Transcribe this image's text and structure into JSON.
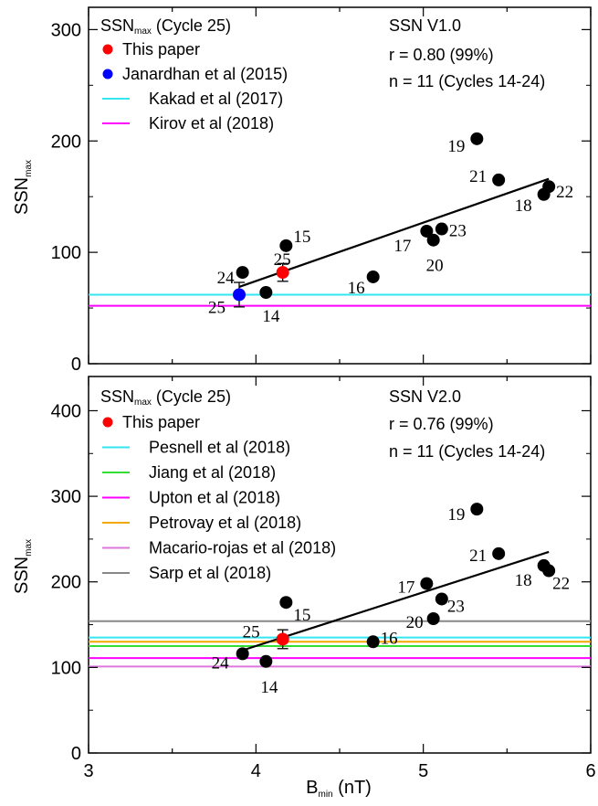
{
  "chart_data": [
    {
      "type": "scatter",
      "ylabel": "SSN",
      "ylabel_sub": "max",
      "ylim": [
        0,
        320
      ],
      "yticks": [
        "0",
        "100",
        "200",
        "300"
      ],
      "legend_title": "SSN",
      "legend_title_sub": "max",
      "legend_title_suffix": " (Cycle 25)",
      "legend": [
        {
          "text": "This paper",
          "marker": "dot",
          "color": "#ff0000"
        },
        {
          "text": "Janardhan et al (2015)",
          "marker": "dot",
          "color": "#0000ff"
        },
        {
          "text": "Kakad et al (2017)",
          "marker": "line",
          "color": "#33e6f0"
        },
        {
          "text": "Kirov et al (2018)",
          "marker": "line",
          "color": "#ff00ff"
        }
      ],
      "stats": [
        "SSN V1.0",
        "r = 0.80 (99%)",
        "n = 11 (Cycles 14-24)"
      ],
      "points": [
        {
          "x": 3.92,
          "y": 82,
          "label": "24"
        },
        {
          "x": 4.06,
          "y": 64,
          "label": "14"
        },
        {
          "x": 4.18,
          "y": 106,
          "label": "15"
        },
        {
          "x": 4.7,
          "y": 78,
          "label": "16"
        },
        {
          "x": 5.02,
          "y": 119,
          "label": "17"
        },
        {
          "x": 5.72,
          "y": 152,
          "label": "18"
        },
        {
          "x": 5.32,
          "y": 202,
          "label": "19"
        },
        {
          "x": 5.06,
          "y": 111,
          "label": "20"
        },
        {
          "x": 5.45,
          "y": 165,
          "label": "21"
        },
        {
          "x": 5.75,
          "y": 159,
          "label": "22"
        },
        {
          "x": 5.11,
          "y": 121,
          "label": "23"
        }
      ],
      "predictions": [
        {
          "x": 4.16,
          "y": 82,
          "err": 8,
          "color": "#ff0000",
          "label": "25"
        },
        {
          "x": 3.9,
          "y": 62,
          "err": 11,
          "color": "#0000ff",
          "label": "25"
        }
      ],
      "hlines": [
        {
          "y": 62,
          "color": "#33e6f0"
        },
        {
          "y": 52,
          "color": "#ff00ff"
        }
      ],
      "fit": {
        "x1": 3.9,
        "y1": 69,
        "x2": 5.75,
        "y2": 166
      }
    },
    {
      "type": "scatter",
      "ylabel": "SSN",
      "ylabel_sub": "max",
      "xlabel": "B",
      "xlabel_sub": "min",
      "xlabel_suffix": " (nT)",
      "xlim": [
        3,
        6
      ],
      "xticks": [
        "3",
        "4",
        "5",
        "6"
      ],
      "ylim": [
        0,
        440
      ],
      "yticks": [
        "0",
        "100",
        "200",
        "300",
        "400"
      ],
      "legend_title": "SSN",
      "legend_title_sub": "max",
      "legend_title_suffix": " (Cycle 25)",
      "legend": [
        {
          "text": "This paper",
          "marker": "dot",
          "color": "#ff0000"
        },
        {
          "text": "Pesnell et al (2018)",
          "marker": "line",
          "color": "#33e6f0"
        },
        {
          "text": "Jiang et al (2018)",
          "marker": "line",
          "color": "#33dd33"
        },
        {
          "text": "Upton et al (2018)",
          "marker": "line",
          "color": "#ff00ff"
        },
        {
          "text": "Petrovay et al (2018)",
          "marker": "line",
          "color": "#f0a800"
        },
        {
          "text": "Macario-rojas et al (2018)",
          "marker": "line",
          "color": "#dd77dd"
        },
        {
          "text": "Sarp et al (2018)",
          "marker": "line",
          "color": "#888888"
        }
      ],
      "stats": [
        "SSN V2.0",
        "r = 0.76 (99%)",
        "n = 11 (Cycles 14-24)"
      ],
      "points": [
        {
          "x": 3.92,
          "y": 116,
          "label": "24"
        },
        {
          "x": 4.06,
          "y": 107,
          "label": "14"
        },
        {
          "x": 4.18,
          "y": 176,
          "label": "15"
        },
        {
          "x": 4.7,
          "y": 130,
          "label": "16"
        },
        {
          "x": 5.02,
          "y": 198,
          "label": "17"
        },
        {
          "x": 5.72,
          "y": 219,
          "label": "18"
        },
        {
          "x": 5.32,
          "y": 285,
          "label": "19"
        },
        {
          "x": 5.06,
          "y": 157,
          "label": "20"
        },
        {
          "x": 5.45,
          "y": 233,
          "label": "21"
        },
        {
          "x": 5.75,
          "y": 213,
          "label": "22"
        },
        {
          "x": 5.11,
          "y": 180,
          "label": "23"
        }
      ],
      "predictions": [
        {
          "x": 4.16,
          "y": 133,
          "err": 11,
          "color": "#ff0000",
          "label": "25"
        }
      ],
      "hlines": [
        {
          "y": 154,
          "color": "#888888"
        },
        {
          "y": 135,
          "color": "#33e6f0"
        },
        {
          "y": 130,
          "color": "#f0a800"
        },
        {
          "y": 125,
          "color": "#33dd33"
        },
        {
          "y": 111,
          "color": "#ff00ff"
        },
        {
          "y": 101,
          "color": "#dd77dd"
        }
      ],
      "fit": {
        "x1": 3.92,
        "y1": 120,
        "x2": 5.75,
        "y2": 235
      }
    }
  ]
}
